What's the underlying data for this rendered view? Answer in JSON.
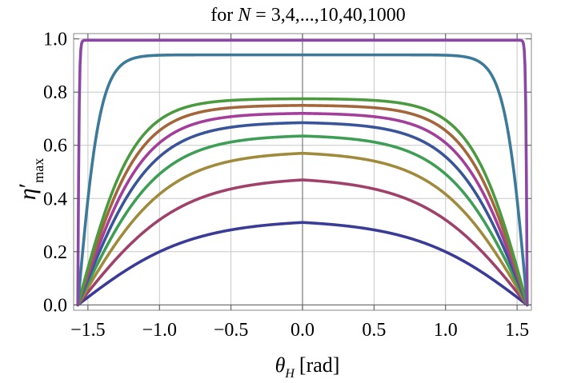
{
  "chart_data": {
    "type": "line",
    "title": {
      "prefix": "for ",
      "var": "N",
      "suffix": " = 3,4,...,10,40,1000"
    },
    "xlabel": {
      "symbol": "θ",
      "sub": "H",
      "unit": "[rad]"
    },
    "ylabel": {
      "symbol": "η",
      "prime": "′",
      "sub": "max"
    },
    "xlim": [
      -1.6,
      1.6
    ],
    "ylim": [
      -0.02,
      1.02
    ],
    "x_ticks": [
      -1.5,
      -1.0,
      -0.5,
      0.0,
      0.5,
      1.0,
      1.5
    ],
    "x_tick_labels": [
      "−1.5",
      "−1.0",
      "−0.5",
      "0.0",
      "0.5",
      "1.0",
      "1.5"
    ],
    "y_ticks": [
      0.0,
      0.2,
      0.4,
      0.6,
      0.8,
      1.0
    ],
    "y_tick_labels": [
      "0.0",
      "0.2",
      "0.4",
      "0.6",
      "0.8",
      "1.0"
    ],
    "grid": true,
    "x_domain": [
      -1.5708,
      1.5708
    ],
    "series": [
      {
        "peak": 0.31,
        "sharpness": 2.0,
        "color": "#3a3b96"
      },
      {
        "peak": 0.47,
        "sharpness": 2.2,
        "color": "#a0416b"
      },
      {
        "peak": 0.57,
        "sharpness": 2.5,
        "color": "#a08a3c"
      },
      {
        "peak": 0.635,
        "sharpness": 2.8,
        "color": "#3e9e56"
      },
      {
        "peak": 0.685,
        "sharpness": 3.1,
        "color": "#3a5499"
      },
      {
        "peak": 0.72,
        "sharpness": 3.4,
        "color": "#a33f9a"
      },
      {
        "peak": 0.75,
        "sharpness": 3.7,
        "color": "#a2663a"
      },
      {
        "peak": 0.775,
        "sharpness": 4.0,
        "color": "#4b9a3f"
      },
      {
        "peak": 0.94,
        "sharpness": 10.0,
        "color": "#3b7a98"
      },
      {
        "peak": 0.995,
        "sharpness": 150.0,
        "color": "#8a47a6"
      }
    ]
  }
}
